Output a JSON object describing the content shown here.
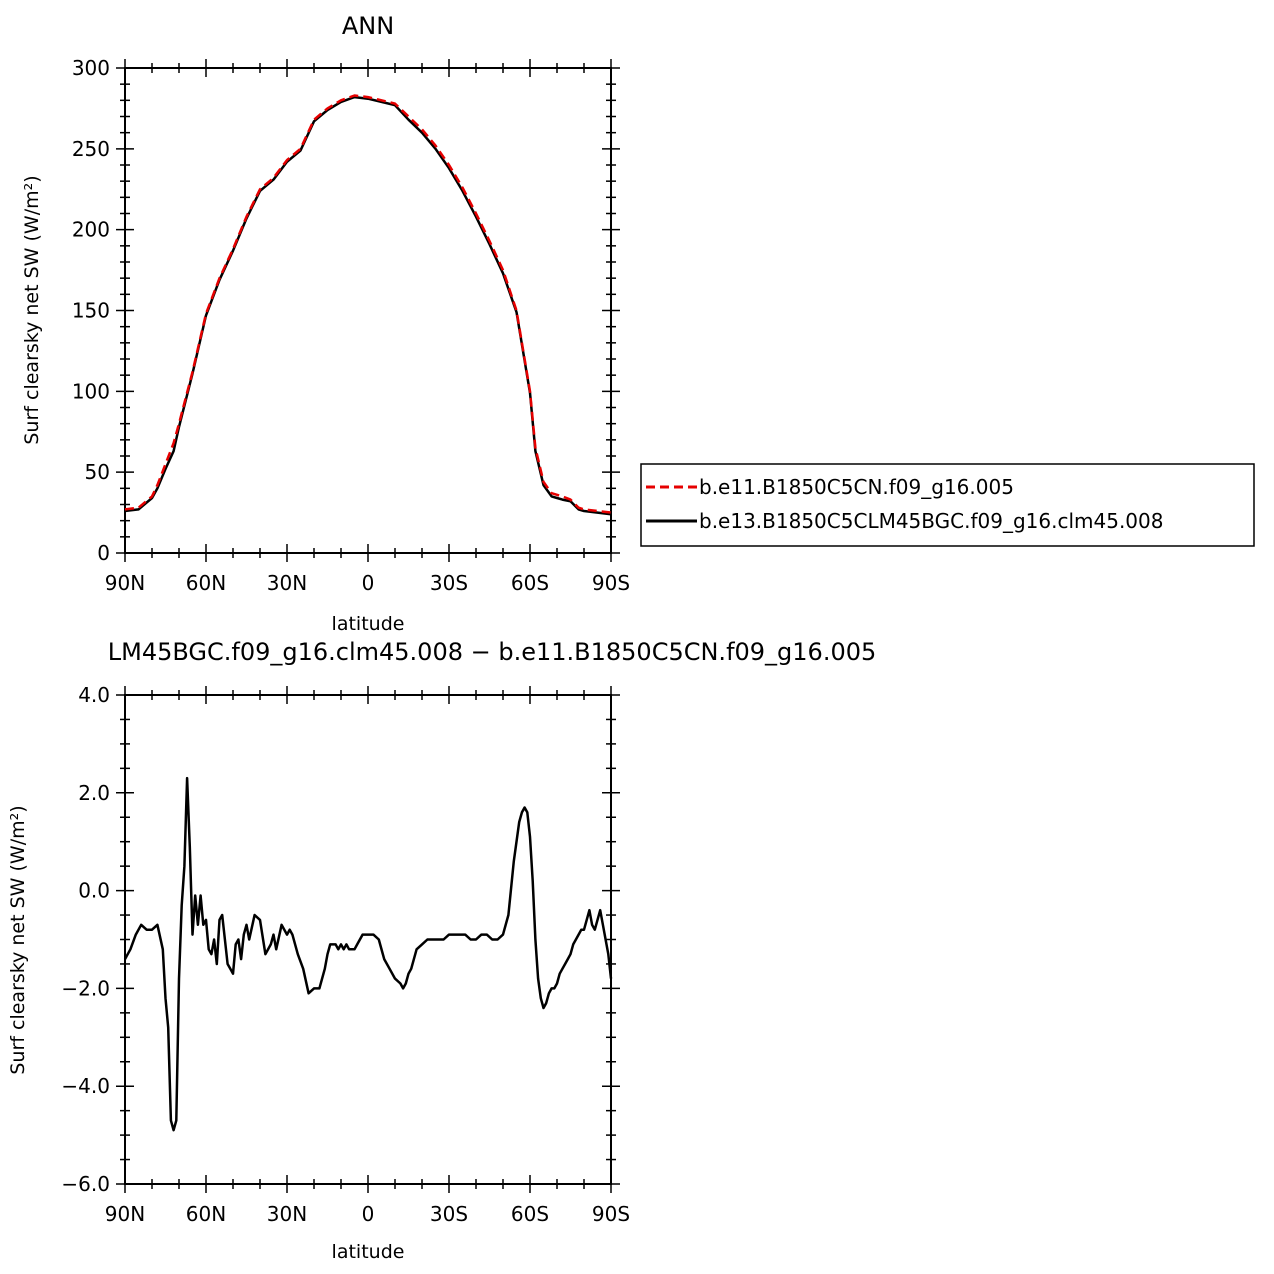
{
  "chart_data": [
    {
      "type": "line",
      "title": "ANN",
      "xlabel": "latitude",
      "ylabel": "Surf clearsky net SW (W/m²)",
      "xlim": [
        90,
        -90
      ],
      "ylim": [
        0,
        300
      ],
      "x_ticks": [
        90,
        60,
        30,
        0,
        -30,
        -60,
        -90
      ],
      "x_tick_labels": [
        "90N",
        "60N",
        "30N",
        "0",
        "30S",
        "60S",
        "90S"
      ],
      "y_ticks": [
        0,
        50,
        100,
        150,
        200,
        250,
        300
      ],
      "y_tick_labels": [
        "0",
        "50",
        "100",
        "150",
        "200",
        "250",
        "300"
      ],
      "grid": false,
      "legend": "right",
      "series": [
        {
          "name": "b.e11.B1850C5CN.f09_g16.005",
          "color": "#e60000",
          "style": "dashed",
          "x": [
            90,
            85,
            80,
            78,
            75,
            72,
            70,
            65,
            60,
            55,
            50,
            45,
            40,
            35,
            30,
            25,
            20,
            15,
            10,
            5,
            0,
            -5,
            -10,
            -15,
            -20,
            -25,
            -30,
            -35,
            -40,
            -45,
            -50,
            -55,
            -60,
            -62,
            -65,
            -68,
            -70,
            -72,
            -75,
            -78,
            -80,
            -85,
            -90
          ],
          "y": [
            27,
            28,
            35,
            42,
            55,
            68,
            80,
            112,
            148,
            170,
            188,
            208,
            225,
            232,
            243,
            250,
            268,
            275,
            280,
            283,
            282,
            280,
            278,
            270,
            262,
            252,
            240,
            226,
            210,
            193,
            175,
            150,
            100,
            65,
            44,
            37,
            36,
            35,
            33,
            28,
            27,
            26,
            25
          ]
        },
        {
          "name": "b.e13.B1850C5CLM45BGC.f09_g16.clm45.008",
          "color": "#000000",
          "style": "solid",
          "x": [
            90,
            85,
            80,
            78,
            75,
            72,
            70,
            65,
            60,
            55,
            50,
            45,
            40,
            35,
            30,
            25,
            20,
            15,
            10,
            5,
            0,
            -5,
            -10,
            -15,
            -20,
            -25,
            -30,
            -35,
            -40,
            -45,
            -50,
            -55,
            -60,
            -62,
            -65,
            -68,
            -70,
            -72,
            -75,
            -78,
            -80,
            -85,
            -90
          ],
          "y": [
            26,
            27,
            34,
            40,
            52,
            63,
            78,
            111,
            147,
            169,
            187,
            207,
            224,
            231,
            242,
            249,
            267,
            274,
            279,
            282,
            281,
            279,
            277,
            268,
            260,
            250,
            238,
            224,
            208,
            191,
            173,
            149,
            99,
            63,
            42,
            35,
            34,
            33,
            32,
            27,
            26,
            25,
            24
          ]
        }
      ]
    },
    {
      "type": "line",
      "title": "LM45BGC.f09_g16.clm45.008 − b.e11.B1850C5CN.f09_g16.005",
      "xlabel": "latitude",
      "ylabel": "Surf clearsky net SW (W/m²)",
      "xlim": [
        90,
        -90
      ],
      "ylim": [
        -6.0,
        4.0
      ],
      "x_ticks": [
        90,
        60,
        30,
        0,
        -30,
        -60,
        -90
      ],
      "x_tick_labels": [
        "90N",
        "60N",
        "30N",
        "0",
        "30S",
        "60S",
        "90S"
      ],
      "y_ticks": [
        -6.0,
        -4.0,
        -2.0,
        0.0,
        2.0,
        4.0
      ],
      "y_tick_labels": [
        "−6.0",
        "−4.0",
        "−2.0",
        "0.0",
        "2.0",
        "4.0"
      ],
      "grid": false,
      "series": [
        {
          "color": "#000000",
          "style": "solid",
          "x": [
            90,
            88,
            86,
            84,
            82,
            80,
            78,
            76,
            75,
            74,
            73,
            72,
            71,
            70,
            69,
            68,
            67,
            66,
            65,
            64,
            63,
            62,
            61,
            60,
            59,
            58,
            57,
            56,
            55,
            54,
            53,
            52,
            51,
            50,
            49,
            48,
            47,
            46,
            45,
            44,
            42,
            40,
            38,
            36,
            35,
            34,
            32,
            30,
            29,
            28,
            26,
            24,
            22,
            20,
            18,
            16,
            15,
            14,
            13,
            12,
            11,
            10,
            9,
            8,
            7,
            6,
            5,
            4,
            2,
            0,
            -2,
            -4,
            -6,
            -8,
            -10,
            -12,
            -13,
            -14,
            -15,
            -16,
            -18,
            -20,
            -22,
            -23,
            -24,
            -25,
            -26,
            -28,
            -30,
            -32,
            -34,
            -36,
            -38,
            -40,
            -42,
            -44,
            -46,
            -48,
            -50,
            -52,
            -54,
            -56,
            -57,
            -58,
            -59,
            -60,
            -61,
            -62,
            -63,
            -64,
            -65,
            -66,
            -67,
            -68,
            -69,
            -70,
            -71,
            -72,
            -73,
            -74,
            -75,
            -76,
            -77,
            -78,
            -79,
            -80,
            -81,
            -82,
            -83,
            -84,
            -85,
            -86,
            -87,
            -88,
            -89,
            -90
          ],
          "y": [
            -1.4,
            -1.2,
            -0.9,
            -0.7,
            -0.8,
            -0.8,
            -0.7,
            -1.2,
            -2.2,
            -2.8,
            -4.7,
            -4.9,
            -4.7,
            -1.8,
            -0.3,
            0.5,
            2.3,
            0.9,
            -0.9,
            -0.1,
            -0.7,
            -0.1,
            -0.7,
            -0.6,
            -1.2,
            -1.3,
            -1.0,
            -1.5,
            -0.6,
            -0.5,
            -1.0,
            -1.5,
            -1.6,
            -1.7,
            -1.1,
            -1.0,
            -1.4,
            -0.9,
            -0.7,
            -1.0,
            -0.5,
            -0.6,
            -1.3,
            -1.1,
            -0.9,
            -1.2,
            -0.7,
            -0.9,
            -0.8,
            -0.9,
            -1.3,
            -1.6,
            -2.1,
            -2.0,
            -2.0,
            -1.6,
            -1.3,
            -1.1,
            -1.1,
            -1.1,
            -1.2,
            -1.1,
            -1.2,
            -1.1,
            -1.2,
            -1.2,
            -1.2,
            -1.1,
            -0.9,
            -0.9,
            -0.9,
            -1.0,
            -1.4,
            -1.6,
            -1.8,
            -1.9,
            -2.0,
            -1.9,
            -1.7,
            -1.6,
            -1.2,
            -1.1,
            -1.0,
            -1.0,
            -1.0,
            -1.0,
            -1.0,
            -1.0,
            -0.9,
            -0.9,
            -0.9,
            -0.9,
            -1.0,
            -1.0,
            -0.9,
            -0.9,
            -1.0,
            -1.0,
            -0.9,
            -0.5,
            0.6,
            1.4,
            1.6,
            1.7,
            1.6,
            1.1,
            0.2,
            -1.0,
            -1.8,
            -2.2,
            -2.4,
            -2.3,
            -2.1,
            -2.0,
            -2.0,
            -1.9,
            -1.7,
            -1.6,
            -1.5,
            -1.4,
            -1.3,
            -1.1,
            -1.0,
            -0.9,
            -0.8,
            -0.8,
            -0.6,
            -0.4,
            -0.7,
            -0.8,
            -0.6,
            -0.4,
            -0.7,
            -1.0,
            -1.3,
            -1.8
          ]
        }
      ]
    }
  ]
}
